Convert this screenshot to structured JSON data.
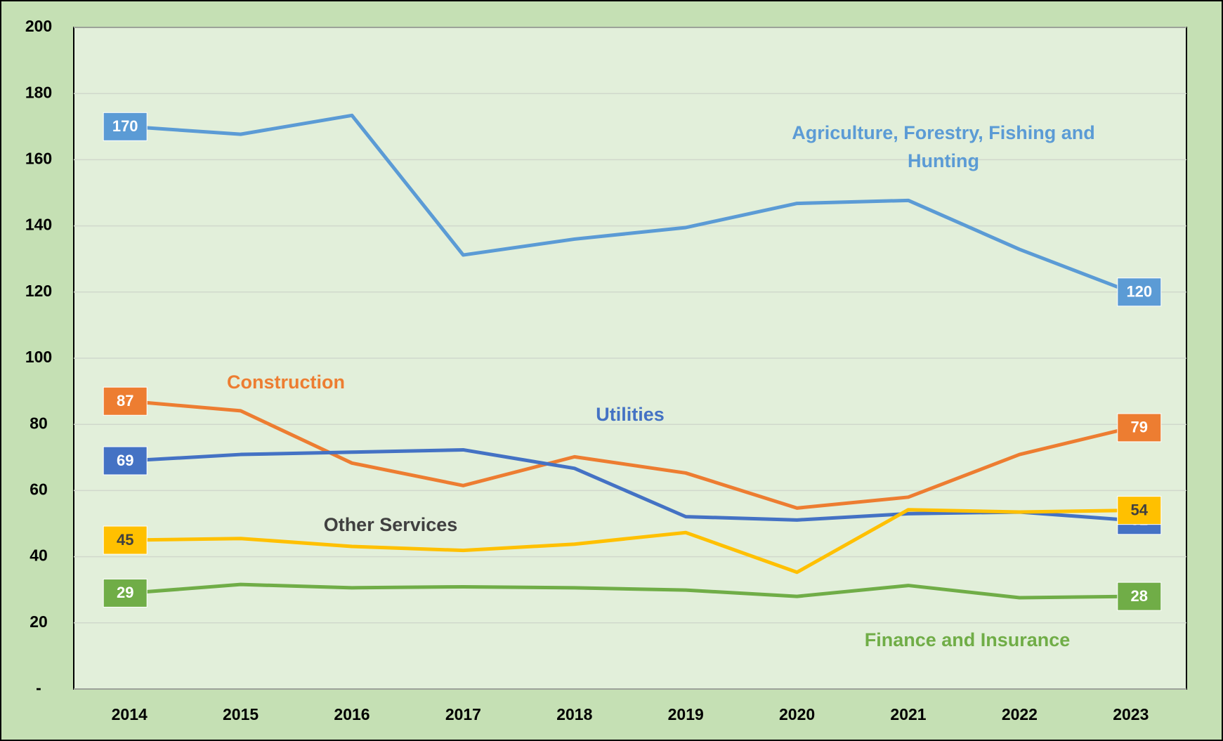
{
  "chart_data": {
    "type": "line",
    "categories": [
      "2014",
      "2015",
      "2016",
      "2017",
      "2018",
      "2019",
      "2020",
      "2021",
      "2022",
      "2023"
    ],
    "series": [
      {
        "name": "Agriculture, Forestry, Fishing and Hunting",
        "color": "#5b9bd5",
        "values": [
          170,
          167.7,
          173.4,
          131.2,
          136,
          139.5,
          146.8,
          147.7,
          132.9,
          120
        ]
      },
      {
        "name": "Construction",
        "color": "#ed7d31",
        "values": [
          87,
          84.1,
          68.3,
          61.5,
          70.2,
          65.3,
          54.7,
          58,
          70.9,
          79
        ]
      },
      {
        "name": "Utilities",
        "color": "#4472c4",
        "values": [
          69,
          70.9,
          71.6,
          72.3,
          66.7,
          52.1,
          51.1,
          53,
          53.5,
          51
        ]
      },
      {
        "name": "Other Services",
        "color": "#ffc000",
        "values": [
          45,
          45.5,
          43.1,
          41.9,
          43.8,
          47.3,
          35.3,
          54.2,
          53.5,
          54
        ]
      },
      {
        "name": "Finance and Insurance",
        "color": "#70ad47",
        "values": [
          29,
          31.6,
          30.6,
          30.9,
          30.6,
          29.9,
          28,
          31.3,
          27.6,
          28
        ]
      }
    ],
    "ylim": [
      0,
      200
    ],
    "yticks": [
      {
        "value": 0,
        "label": "-"
      },
      20,
      40,
      60,
      80,
      100,
      120,
      140,
      160,
      180,
      200
    ],
    "grid": true
  }
}
